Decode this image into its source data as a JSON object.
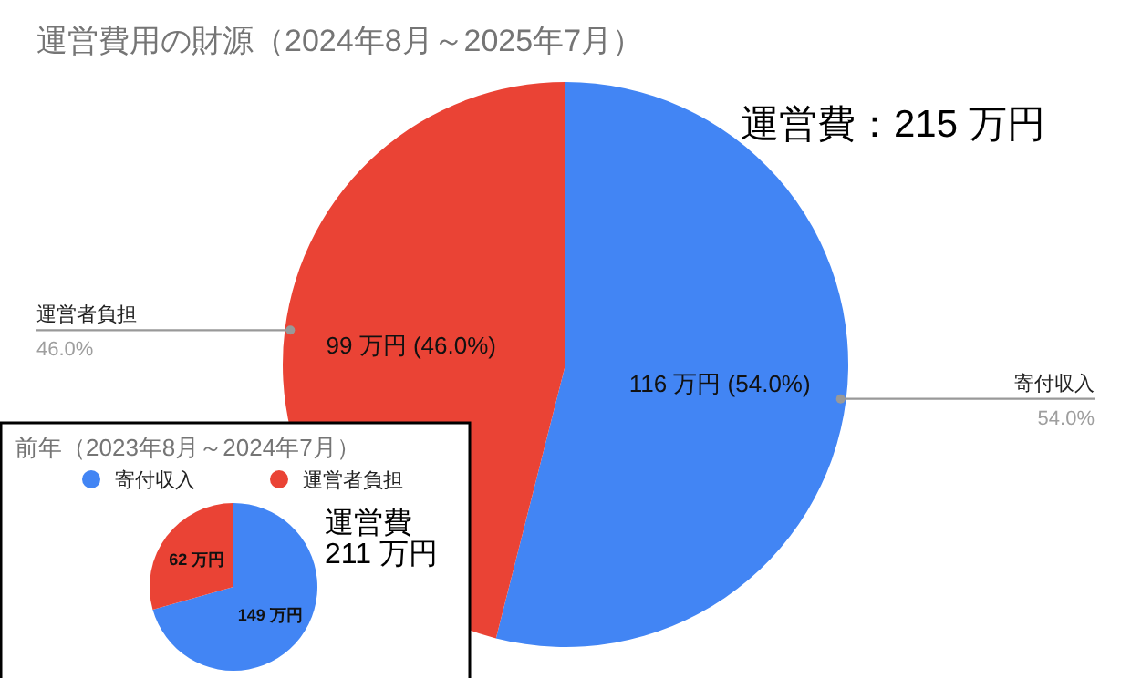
{
  "chart_data": [
    {
      "type": "pie",
      "title": "運営費用の財源（2024年8月～2025年7月）",
      "categories": [
        "寄付収入",
        "運営者負担"
      ],
      "values": [
        116,
        99
      ],
      "colors": [
        "#4285f4",
        "#ea4335"
      ],
      "value_labels": [
        "116 万円 (54.0%)",
        "99 万円 (46.0%)"
      ],
      "annotations": [
        "運営費：215 万円",
        "54.0%",
        "46.0%"
      ]
    },
    {
      "type": "pie",
      "title": "前年（2023年8月～2024年7月）",
      "categories": [
        "寄付収入",
        "運営者負担"
      ],
      "values": [
        149,
        62
      ],
      "colors": [
        "#4285f4",
        "#ea4335"
      ],
      "value_labels": [
        "149 万円",
        "62 万円"
      ],
      "legend": "top",
      "annotations": [
        "運営費",
        "211 万円"
      ]
    }
  ]
}
